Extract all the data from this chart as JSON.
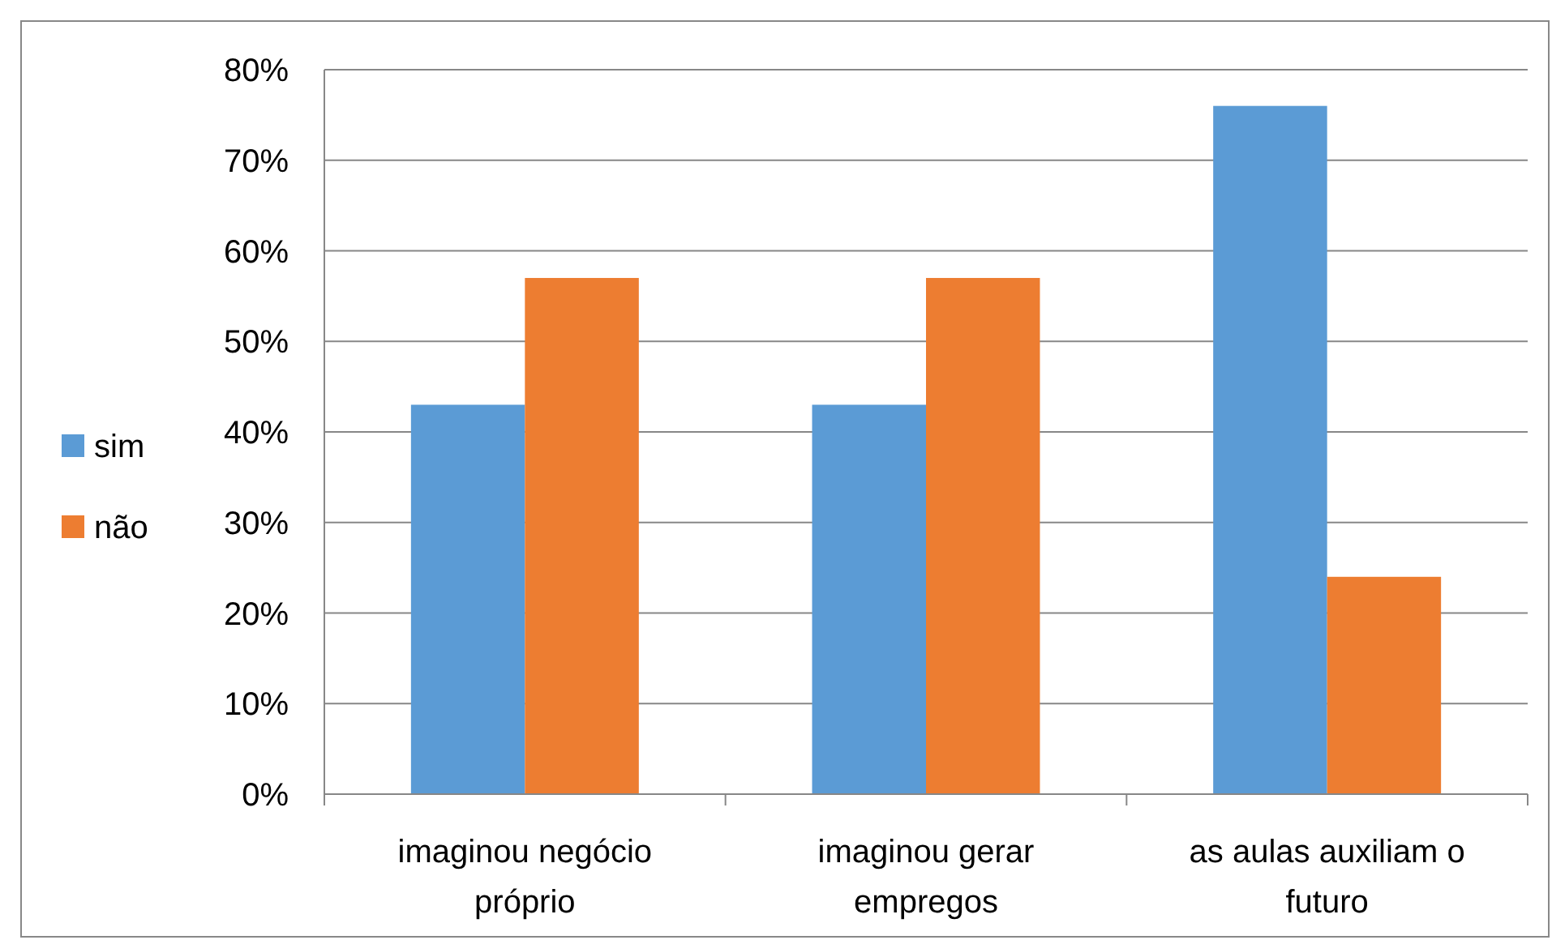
{
  "chart_data": {
    "type": "bar",
    "categories": [
      "imaginou negócio próprio",
      "imaginou gerar empregos",
      "as aulas auxiliam o futuro"
    ],
    "series": [
      {
        "name": "sim",
        "color": "#5b9bd5",
        "values": [
          43,
          43,
          76
        ]
      },
      {
        "name": "não",
        "color": "#ed7d31",
        "values": [
          57,
          57,
          24
        ]
      }
    ],
    "ylim": [
      0,
      80
    ],
    "yticks": [
      {
        "value": 0,
        "label": "0%"
      },
      {
        "value": 10,
        "label": "10%"
      },
      {
        "value": 20,
        "label": "20%"
      },
      {
        "value": 30,
        "label": "30%"
      },
      {
        "value": 40,
        "label": "40%"
      },
      {
        "value": 50,
        "label": "50%"
      },
      {
        "value": 60,
        "label": "60%"
      },
      {
        "value": 70,
        "label": "70%"
      },
      {
        "value": 80,
        "label": "80%"
      }
    ],
    "grid": "y",
    "legend": "left"
  }
}
